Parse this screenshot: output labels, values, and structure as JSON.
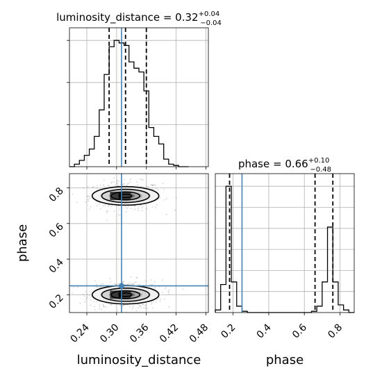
{
  "chart_data": {
    "type": "corner",
    "truth_color": "#4682b4",
    "parameters": [
      "luminosity_distance",
      "phase"
    ],
    "truths": {
      "luminosity_distance": 0.31,
      "phase": 0.25
    },
    "panels": [
      {
        "id": "hist-luminosity_distance",
        "type": "histogram",
        "parameter": "luminosity_distance",
        "title": {
          "prefix": "luminosity_distance = ",
          "median": "0.32",
          "upper": "+0.04",
          "lower": "−0.04"
        },
        "xlim": [
          0.205,
          0.485
        ],
        "bins": [
          0.205,
          0.215,
          0.225,
          0.235,
          0.245,
          0.255,
          0.265,
          0.275,
          0.285,
          0.295,
          0.305,
          0.315,
          0.325,
          0.335,
          0.345,
          0.355,
          0.365,
          0.375,
          0.385,
          0.395,
          0.405,
          0.415,
          0.425,
          0.435,
          0.445
        ],
        "counts": [
          0,
          2,
          5,
          9,
          14,
          24,
          45,
          73,
          95,
          100,
          98,
          96,
          83,
          78,
          75,
          60,
          31,
          24,
          18,
          6,
          2,
          1,
          0,
          0
        ],
        "quantiles": [
          0.285,
          0.318,
          0.36
        ],
        "yticks_count": 4
      },
      {
        "id": "hist-phase",
        "type": "histogram",
        "parameter": "phase",
        "title": {
          "prefix": "phase = ",
          "median": "0.66",
          "upper": "+0.10",
          "lower": "−0.48"
        },
        "xlim": [
          0.1,
          0.88
        ],
        "bins": [
          0.1,
          0.13,
          0.16,
          0.19,
          0.22,
          0.25,
          0.28,
          0.31,
          0.34,
          0.37,
          0.4,
          0.43,
          0.46,
          0.49,
          0.52,
          0.55,
          0.58,
          0.61,
          0.64,
          0.67,
          0.7,
          0.73,
          0.76,
          0.79,
          0.82,
          0.85,
          0.88
        ],
        "counts": [
          2,
          22,
          99,
          24,
          5,
          1,
          0,
          0,
          0,
          0,
          0,
          0,
          0,
          0,
          0,
          0,
          0,
          0,
          1,
          5,
          24,
          67,
          24,
          6,
          2,
          0
        ],
        "quantiles": [
          0.18,
          0.66,
          0.76
        ],
        "xticks": [
          "0.2",
          "0.4",
          "0.6",
          "0.8"
        ],
        "xticks_values": [
          0.2,
          0.4,
          0.6,
          0.8
        ],
        "xlabel": "phase"
      },
      {
        "id": "2d-luminosity_distance-phase",
        "type": "density_contour",
        "x": "luminosity_distance",
        "y": "phase",
        "xlim": [
          0.205,
          0.485
        ],
        "ylim": [
          0.1,
          0.88
        ],
        "xticks": [
          "0.24",
          "0.30",
          "0.36",
          "0.42",
          "0.48"
        ],
        "xticks_values": [
          0.24,
          0.3,
          0.36,
          0.42,
          0.48
        ],
        "yticks": [
          "0.2",
          "0.4",
          "0.6",
          "0.8"
        ],
        "yticks_values": [
          0.2,
          0.4,
          0.6,
          0.8
        ],
        "xlabel": "luminosity_distance",
        "ylabel": "phase",
        "modes": [
          {
            "cx": 0.318,
            "cy": 0.755,
            "sx": 0.032,
            "sy": 0.045
          },
          {
            "cx": 0.318,
            "cy": 0.2,
            "sx": 0.032,
            "sy": 0.045
          }
        ],
        "contour_levels": [
          0.4,
          0.9,
          1.5,
          2.1
        ]
      }
    ]
  }
}
